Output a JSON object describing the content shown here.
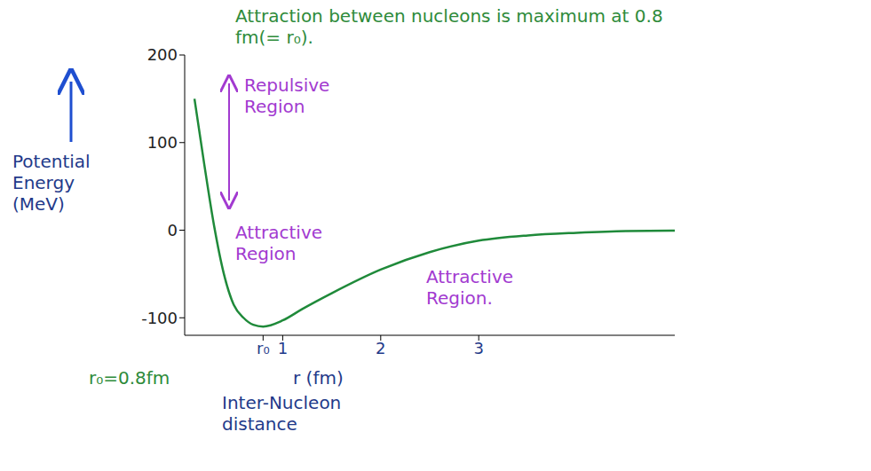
{
  "chart_data": {
    "type": "line",
    "title": "Attraction between nucleons is maximum at 0.8 fm(= r₀).",
    "y_label": "Potential Energy (MeV)",
    "x_label": "r (fm)",
    "annotations": [
      "Repulsive Region",
      "Attractive Region",
      "Attractive Region.",
      "r₀=0.8fm",
      "Inter-Nucleon distance"
    ],
    "x": [
      0.1,
      0.2,
      0.3,
      0.4,
      0.5,
      0.6,
      0.7,
      0.8,
      1.0,
      1.2,
      1.5,
      2.0,
      2.5,
      3.0,
      3.5,
      4.0,
      4.5,
      5.0
    ],
    "values": [
      150,
      75,
      5,
      -50,
      -85,
      -100,
      -108,
      -110,
      -103,
      -90,
      -72,
      -45,
      -25,
      -12,
      -6,
      -3,
      -1,
      -0.5
    ],
    "color": "#1f8a3a",
    "xlim": [
      0,
      5
    ],
    "xticks": [
      {
        "value": 0.8,
        "label": "r₀"
      },
      1,
      2,
      3
    ],
    "ylim": [
      -120,
      200
    ],
    "yticks": [
      -100,
      0,
      100,
      200
    ],
    "grid": false
  }
}
